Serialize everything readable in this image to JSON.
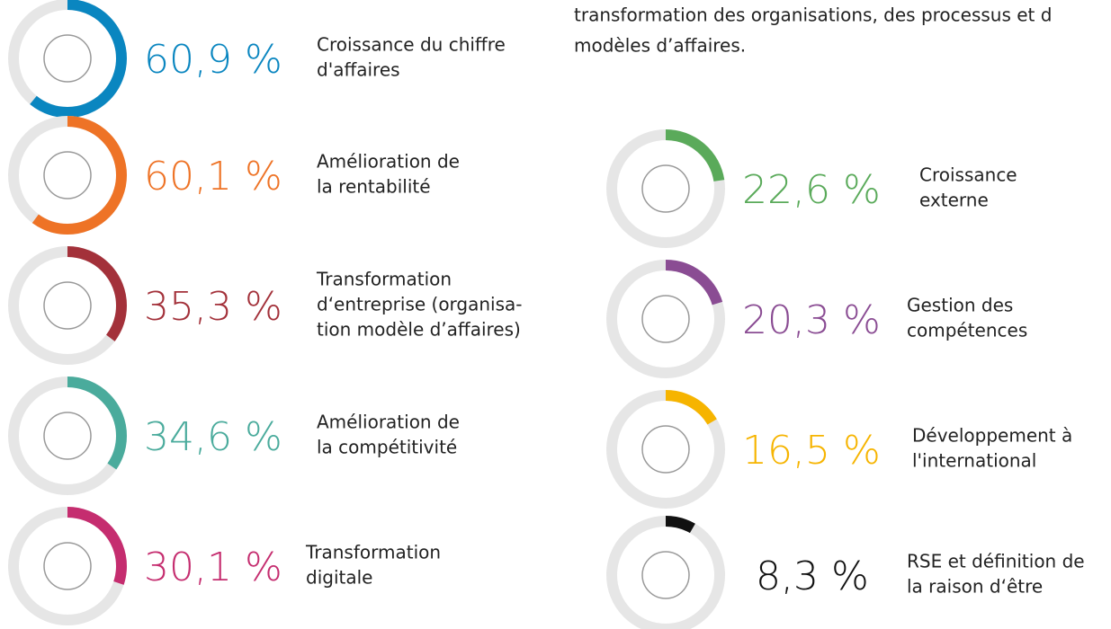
{
  "intro": [
    "transformation des organisations, des processus et d",
    "modèles d’affaires."
  ],
  "items": [
    {
      "value": 60.9,
      "value_label": "60,9 %",
      "label": [
        "Croissance du chiffre",
        "d'affaires"
      ],
      "color": "#0a86c0"
    },
    {
      "value": 60.1,
      "value_label": "60,1 %",
      "label": [
        "Amélioration de",
        "la rentabilité"
      ],
      "color": "#ee7326"
    },
    {
      "value": 35.3,
      "value_label": "35,3 %",
      "label": [
        "Transformation",
        "d‘entreprise (organisa-",
        "tion modèle d’affaires)"
      ],
      "color": "#a3313a"
    },
    {
      "value": 34.6,
      "value_label": "34,6 %",
      "label": [
        "Amélioration de",
        "la compétitivité"
      ],
      "color": "#4aab9c"
    },
    {
      "value": 30.1,
      "value_label": "30,1 %",
      "label": [
        "Transformation",
        "digitale"
      ],
      "color": "#c52d6f"
    },
    {
      "value": 22.6,
      "value_label": "22,6 %",
      "label": [
        "Croissance",
        "externe"
      ],
      "color": "#5aaa5a"
    },
    {
      "value": 20.3,
      "value_label": "20,3 %",
      "label": [
        "Gestion des",
        "compétences"
      ],
      "color": "#8a4c93"
    },
    {
      "value": 16.5,
      "value_label": "16,5 %",
      "label": [
        "Développement à",
        "l'international"
      ],
      "color": "#f6b400"
    },
    {
      "value": 8.3,
      "value_label": "8,3 %",
      "label": [
        "RSE et définition de",
        "la raison d‘être"
      ],
      "color": "#111111"
    }
  ]
}
